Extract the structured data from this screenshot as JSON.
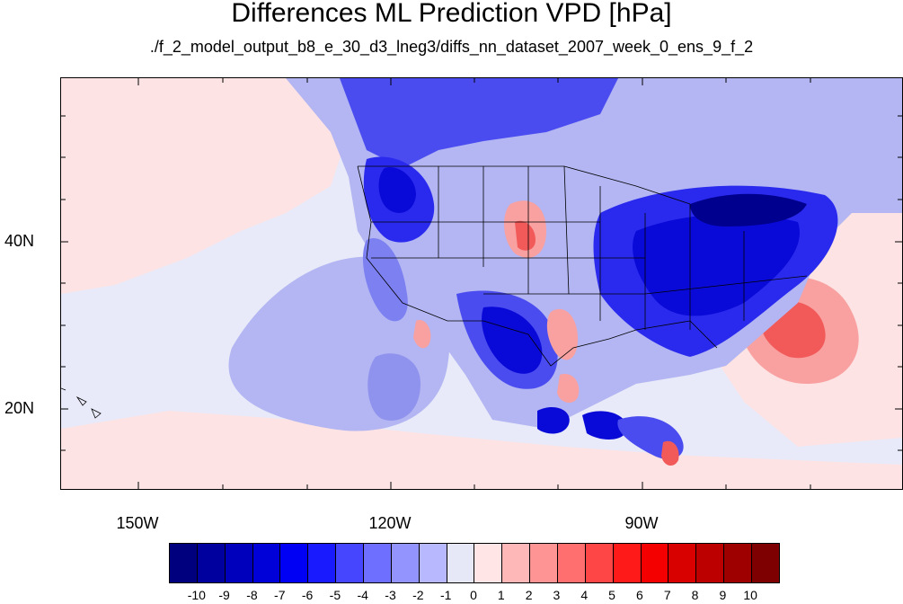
{
  "title": "Differences ML Prediction VPD [hPa]",
  "subtitle": "./f_2_model_output_b8_e_30_d3_lneg3/diffs_nn_dataset_2007_week_0_ens_9_f_2",
  "lat_labels": [
    "40N",
    "20N"
  ],
  "lon_labels": [
    "150W",
    "120W",
    "90W"
  ],
  "colorbar": {
    "labels": [
      "-10",
      "-9",
      "-8",
      "-7",
      "-6",
      "-5",
      "-4",
      "-3",
      "-2",
      "-1",
      "0",
      "1",
      "2",
      "3",
      "4",
      "5",
      "6",
      "7",
      "8",
      "9",
      "10"
    ],
    "colors": [
      "#00007f",
      "#00009e",
      "#0000bc",
      "#0000d9",
      "#0000f4",
      "#1a1aff",
      "#4646ff",
      "#6f6fff",
      "#9494ff",
      "#b8b8ff",
      "#e6e8f8",
      "#ffe5e5",
      "#ffb8b8",
      "#ff9494",
      "#ff6f6f",
      "#ff4646",
      "#ff1a1a",
      "#f40000",
      "#d90000",
      "#bc0000",
      "#9e0000",
      "#7f0000"
    ]
  },
  "legend_colors": {
    "background": "#e8eaf9",
    "ocean_light_red": "#fde3e3",
    "light_blue": "#b3b6f2",
    "medium_blue": "#7c80f0",
    "strong_blue": "#2a2aef",
    "deep_blue": "#0a0ad8",
    "light_red": "#f9b4b4",
    "strong_red": "#f25a5a"
  }
}
